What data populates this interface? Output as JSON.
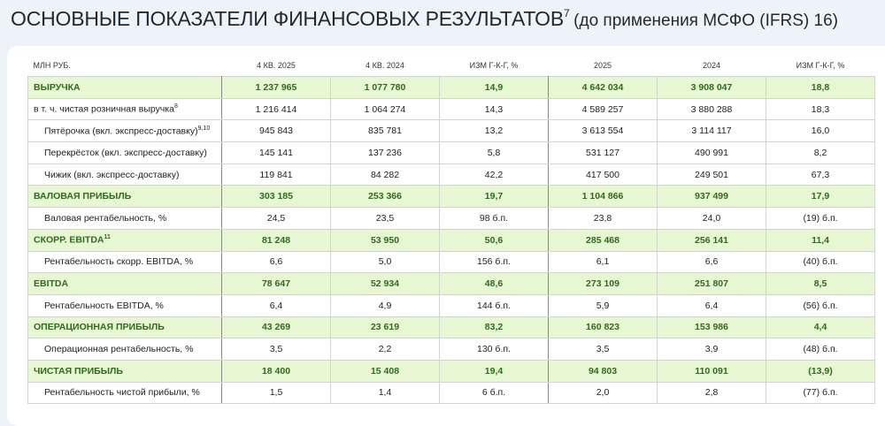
{
  "title": {
    "main": "ОСНОВНЫЕ ПОКАЗАТЕЛИ ФИНАНСОВЫХ РЕЗУЛЬТАТОВ",
    "footnote": "7",
    "sub": "(до применения МСФО (IFRS) 16)"
  },
  "table": {
    "headers": [
      "МЛН РУБ.",
      "4 КВ. 2025",
      "4 КВ. 2024",
      "ИЗМ Г-К-Г, %",
      "2025",
      "2024",
      "ИЗМ Г-К-Г, %"
    ],
    "rows": [
      {
        "label": "ВЫРУЧКА",
        "note": "",
        "type": "hl",
        "values": [
          "1 237 965",
          "1 077 780",
          "14,9",
          "4 642 034",
          "3 908 047",
          "18,8"
        ]
      },
      {
        "label": "в т. ч. чистая розничная выручка",
        "note": "8",
        "type": "plain",
        "values": [
          "1 216 414",
          "1 064 274",
          "14,3",
          "4 589 257",
          "3 880 288",
          "18,3"
        ]
      },
      {
        "label": "Пятёрочка (вкл. экспресс-доставку)",
        "note": "9,10",
        "type": "sub",
        "values": [
          "945 843",
          "835 781",
          "13,2",
          "3 613 554",
          "3 114 117",
          "16,0"
        ]
      },
      {
        "label": "Перекрёсток (вкл. экспресс-доставку)",
        "note": "",
        "type": "sub",
        "values": [
          "145 141",
          "137 236",
          "5,8",
          "531 127",
          "490 991",
          "8,2"
        ]
      },
      {
        "label": "Чижик (вкл. экспресс-доставку)",
        "note": "",
        "type": "sub",
        "values": [
          "119 841",
          "84 282",
          "42,2",
          "417 500",
          "249 501",
          "67,3"
        ]
      },
      {
        "label": "ВАЛОВАЯ ПРИБЫЛЬ",
        "note": "",
        "type": "hl",
        "values": [
          "303 185",
          "253 366",
          "19,7",
          "1 104 866",
          "937 499",
          "17,9"
        ]
      },
      {
        "label": "Валовая рентабельность, %",
        "note": "",
        "type": "sub",
        "values": [
          "24,5",
          "23,5",
          "98 б.п.",
          "23,8",
          "24,0",
          "(19) б.п."
        ]
      },
      {
        "label": "СКОРР. EBITDA",
        "note": "11",
        "type": "hl",
        "values": [
          "81 248",
          "53 950",
          "50,6",
          "285 468",
          "256 141",
          "11,4"
        ]
      },
      {
        "label": "Рентабельность скорр. EBITDA, %",
        "note": "",
        "type": "sub",
        "values": [
          "6,6",
          "5,0",
          "156 б.п.",
          "6,1",
          "6,6",
          "(40) б.п."
        ]
      },
      {
        "label": "EBITDA",
        "note": "",
        "type": "hl",
        "values": [
          "78 647",
          "52 934",
          "48,6",
          "273 109",
          "251 807",
          "8,5"
        ]
      },
      {
        "label": "Рентабельность EBITDA, %",
        "note": "",
        "type": "sub",
        "values": [
          "6,4",
          "4,9",
          "144 б.п.",
          "5,9",
          "6,4",
          "(56) б.п."
        ]
      },
      {
        "label": "ОПЕРАЦИОННАЯ ПРИБЫЛЬ",
        "note": "",
        "type": "hl",
        "values": [
          "43 269",
          "23 619",
          "83,2",
          "160 823",
          "153 986",
          "4,4"
        ]
      },
      {
        "label": "Операционная рентабельность, %",
        "note": "",
        "type": "sub",
        "values": [
          "3,5",
          "2,2",
          "130 б.п.",
          "3,5",
          "3,9",
          "(48) б.п."
        ]
      },
      {
        "label": "ЧИСТАЯ ПРИБЫЛЬ",
        "note": "",
        "type": "hl",
        "values": [
          "18 400",
          "15 408",
          "19,4",
          "94 803",
          "110 091",
          "(13,9)"
        ]
      },
      {
        "label": "Рентабельность чистой прибыли, %",
        "note": "",
        "type": "sub",
        "values": [
          "1,5",
          "1,4",
          "6 б.п.",
          "2,0",
          "2,8",
          "(77) б.п."
        ]
      }
    ]
  },
  "colors": {
    "highlight_bg": "#e7f6d3",
    "highlight_text": "#2f6b1c",
    "page_bg": "#eef3fa"
  }
}
